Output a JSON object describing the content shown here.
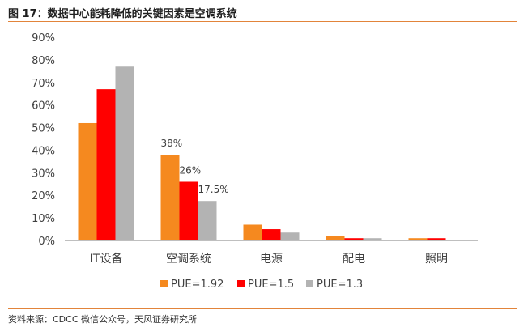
{
  "header": {
    "title": "图 17：数据中心能耗降低的关键因素是空调系统"
  },
  "footer": {
    "source": "资料来源：CDCC 微信公众号，天风证券研究所"
  },
  "chart_data": {
    "type": "bar",
    "categories": [
      "IT设备",
      "空调系统",
      "电源",
      "配电",
      "照明"
    ],
    "series": [
      {
        "name": "PUE=1.92",
        "color": "#f5891f",
        "values": [
          52,
          38,
          7,
          2,
          1
        ]
      },
      {
        "name": "PUE=1.5",
        "color": "#ff0000",
        "values": [
          67,
          26,
          5,
          1,
          1
        ]
      },
      {
        "name": "PUE=1.3",
        "color": "#b3b3b3",
        "values": [
          77,
          17.5,
          3.5,
          1,
          0.3
        ]
      }
    ],
    "ylim": [
      0,
      90
    ],
    "yticks": [
      "0%",
      "10%",
      "20%",
      "30%",
      "40%",
      "50%",
      "60%",
      "70%",
      "80%",
      "90%"
    ],
    "data_labels": [
      {
        "category_index": 1,
        "series_index": 0,
        "text": "38%"
      },
      {
        "category_index": 1,
        "series_index": 1,
        "text": "26%"
      },
      {
        "category_index": 1,
        "series_index": 2,
        "text": "17.5%"
      }
    ],
    "legend_position": "bottom",
    "grid": false
  }
}
